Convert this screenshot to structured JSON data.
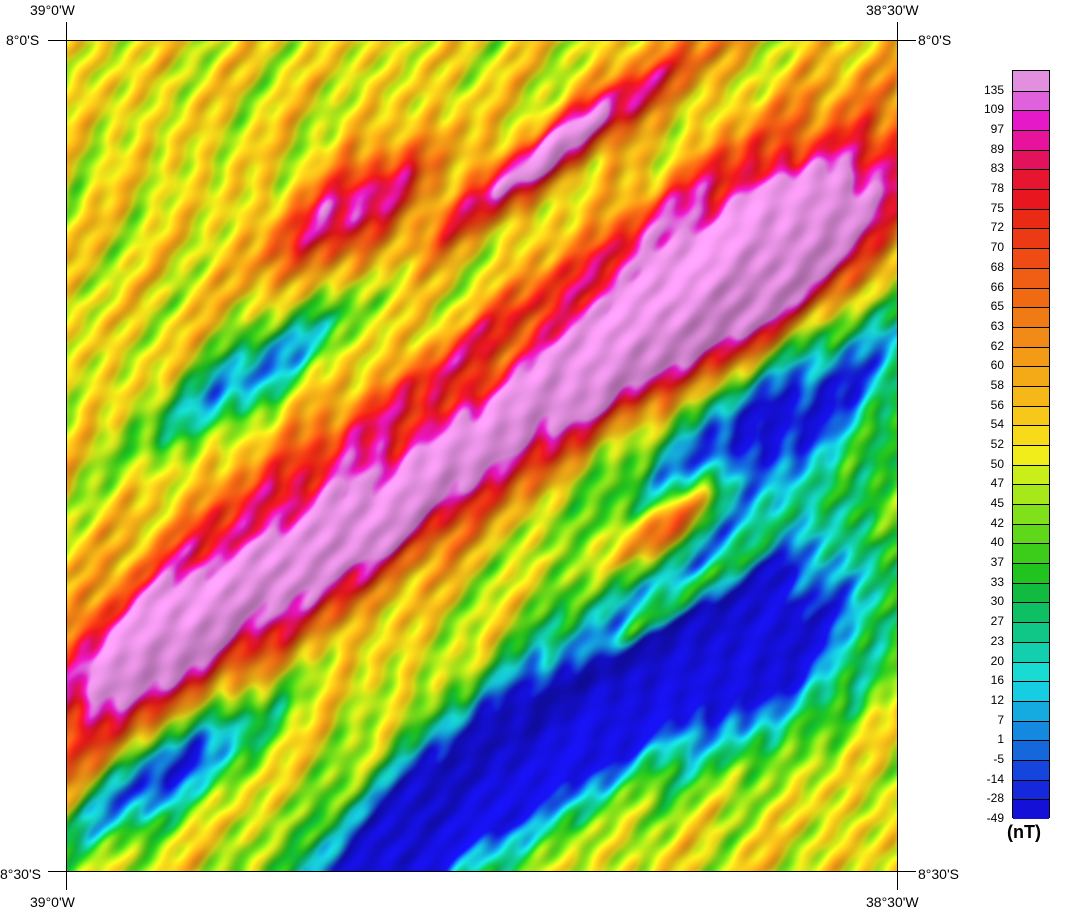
{
  "axes": {
    "top_left": "39°0'W",
    "top_right": "38°30'W",
    "bottom_left": "39°0'W",
    "bottom_right": "38°30'W",
    "left_top": "8°0'S",
    "left_bottom": "8°30'S",
    "right_top": "8°0'S",
    "right_bottom": "8°30'S"
  },
  "colorbar": {
    "unit": "(nT)",
    "labels": [
      "135",
      "109",
      "97",
      "89",
      "83",
      "78",
      "75",
      "72",
      "70",
      "68",
      "66",
      "65",
      "63",
      "62",
      "60",
      "58",
      "56",
      "54",
      "52",
      "50",
      "47",
      "45",
      "42",
      "40",
      "37",
      "33",
      "30",
      "27",
      "23",
      "20",
      "16",
      "12",
      "7",
      "1",
      "-5",
      "-14",
      "-28",
      "-49"
    ],
    "colors": [
      "#e38fe0",
      "#e061dc",
      "#e619c8",
      "#e8139d",
      "#e3125c",
      "#e81530",
      "#e8161e",
      "#ea2a14",
      "#ec3a14",
      "#ee4c14",
      "#ef5e14",
      "#f06a14",
      "#f07a14",
      "#f18a16",
      "#f39a16",
      "#f4aa16",
      "#f5b818",
      "#f7c81a",
      "#f7da1a",
      "#f1ed1a",
      "#c9ee1a",
      "#a6e81a",
      "#80e01a",
      "#5fd81a",
      "#3ccd1a",
      "#21c41f",
      "#10bb3f",
      "#0fbf63",
      "#10c787",
      "#13cfae",
      "#18dcd4",
      "#17cde2",
      "#15abe0",
      "#1588df",
      "#1567dc",
      "#1545dc",
      "#1528db",
      "#1510d8"
    ]
  }
}
